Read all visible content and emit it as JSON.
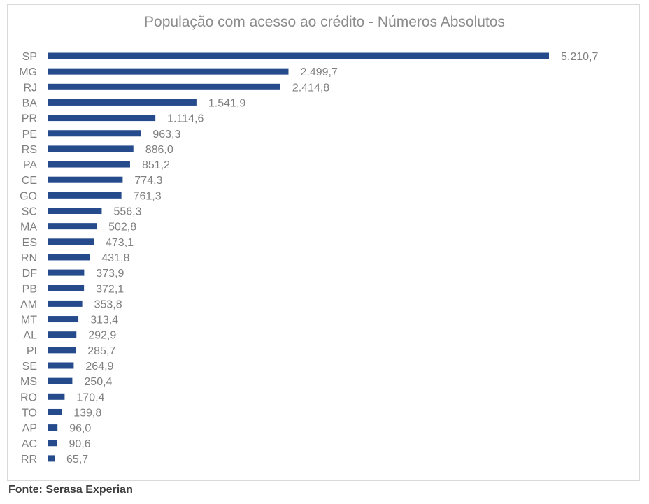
{
  "chart_data": {
    "type": "bar",
    "orientation": "horizontal",
    "title": "População com acesso ao crédito - Números Absolutos",
    "xlabel": "",
    "ylabel": "",
    "grid": false,
    "legend": "none",
    "bar_color": "#264b8c",
    "categories": [
      "SP",
      "MG",
      "RJ",
      "BA",
      "PR",
      "PE",
      "RS",
      "PA",
      "CE",
      "GO",
      "SC",
      "MA",
      "ES",
      "RN",
      "DF",
      "PB",
      "AM",
      "MT",
      "AL",
      "PI",
      "SE",
      "MS",
      "RO",
      "TO",
      "AP",
      "AC",
      "RR"
    ],
    "values": [
      5210.7,
      2499.7,
      2414.8,
      1541.9,
      1114.6,
      963.3,
      886.0,
      851.2,
      774.3,
      761.3,
      556.3,
      502.8,
      473.1,
      431.8,
      373.9,
      372.1,
      353.8,
      313.4,
      292.9,
      285.7,
      264.9,
      250.4,
      170.4,
      139.8,
      96.0,
      90.6,
      65.7
    ],
    "value_labels": [
      "5.210,7",
      "2.499,7",
      "2.414,8",
      "1.541,9",
      "1.114,6",
      "963,3",
      "886,0",
      "851,2",
      "774,3",
      "761,3",
      "556,3",
      "502,8",
      "473,1",
      "431,8",
      "373,9",
      "372,1",
      "353,8",
      "313,4",
      "292,9",
      "285,7",
      "264,9",
      "250,4",
      "170,4",
      "139,8",
      "96,0",
      "90,6",
      "65,7"
    ]
  },
  "source": "Fonte: Serasa Experian"
}
